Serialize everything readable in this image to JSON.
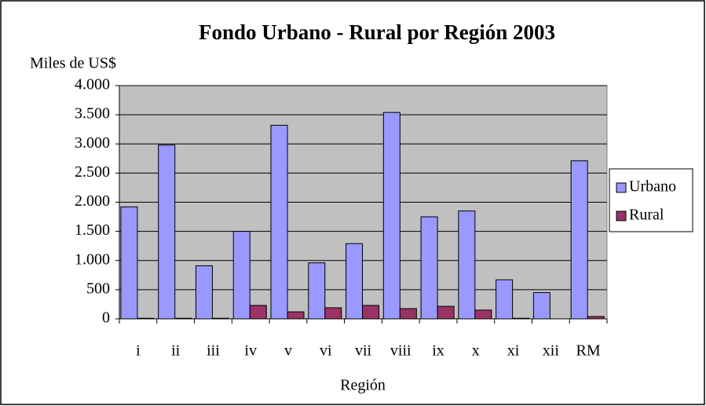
{
  "chart_data": {
    "type": "bar",
    "title": "Fondo Urbano - Rural por Región 2003",
    "y_label": "Miles de US$",
    "x_label": "Región",
    "categories": [
      "i",
      "ii",
      "iii",
      "iv",
      "v",
      "vi",
      "vii",
      "viii",
      "ix",
      "x",
      "xi",
      "xii",
      "RM"
    ],
    "series": [
      {
        "name": "Urbano",
        "color": "#9999ff",
        "values": [
          1920,
          2980,
          910,
          1500,
          3320,
          960,
          1290,
          3540,
          1750,
          1850,
          670,
          450,
          2710
        ]
      },
      {
        "name": "Rural",
        "color": "#993366",
        "values": [
          10,
          10,
          10,
          230,
          120,
          190,
          230,
          175,
          215,
          150,
          10,
          0,
          40
        ]
      }
    ],
    "ylim": [
      0,
      4000
    ],
    "yticks": [
      0,
      500,
      {
        "value": 1000,
        "label": "1.000"
      },
      {
        "value": 1500,
        "label": "1.500"
      },
      {
        "value": 2000,
        "label": "2.000"
      },
      {
        "value": 2500,
        "label": "2.500"
      },
      {
        "value": 3000,
        "label": "3.000"
      },
      {
        "value": 3500,
        "label": "3.500"
      },
      {
        "value": 4000,
        "label": "4.000"
      }
    ],
    "grid": true,
    "legend": "right",
    "plot_background": "#c0c0c0"
  }
}
